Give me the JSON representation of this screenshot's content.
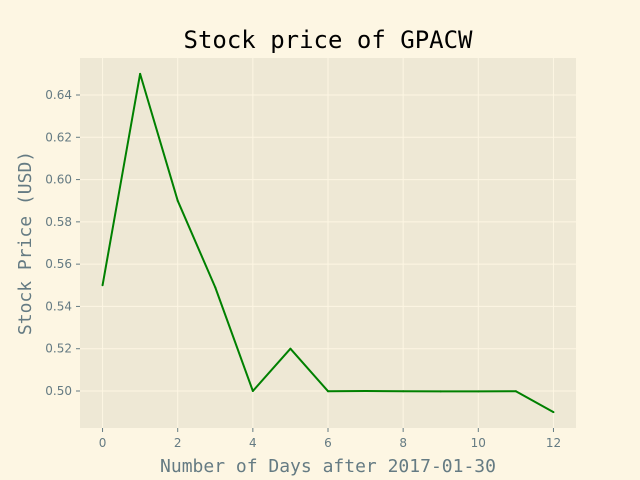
{
  "chart_data": {
    "type": "line",
    "title": "Stock price of GPACW",
    "xlabel": "Number of Days after 2017-01-30",
    "ylabel": "Stock Price (USD)",
    "xlim": [
      -0.6,
      12.6
    ],
    "ylim": [
      0.4825,
      0.6575
    ],
    "xticks": [
      0,
      2,
      4,
      6,
      8,
      10,
      12
    ],
    "xtick_labels": [
      "0",
      "2",
      "4",
      "6",
      "8",
      "10",
      "12"
    ],
    "yticks": [
      0.5,
      0.52,
      0.54,
      0.56,
      0.58,
      0.6,
      0.62,
      0.64
    ],
    "ytick_labels": [
      "0.50",
      "0.52",
      "0.54",
      "0.56",
      "0.58",
      "0.60",
      "0.62",
      "0.64"
    ],
    "grid": true,
    "series": [
      {
        "color": "#008000",
        "x": [
          0,
          1,
          2,
          3,
          4,
          5,
          6,
          7,
          8,
          9,
          10,
          11,
          12
        ],
        "y": [
          0.55,
          0.65,
          0.59,
          0.549,
          0.5,
          0.52,
          0.4999,
          0.5,
          0.4999,
          0.4998,
          0.4998,
          0.4999,
          0.49
        ]
      }
    ]
  },
  "colors": {
    "figure_background": "#fdf6e3",
    "plot_background": "#eee8d5",
    "grid": "#fdf6e3",
    "text": "#657b83",
    "title": "#000000",
    "line": "#008000"
  }
}
